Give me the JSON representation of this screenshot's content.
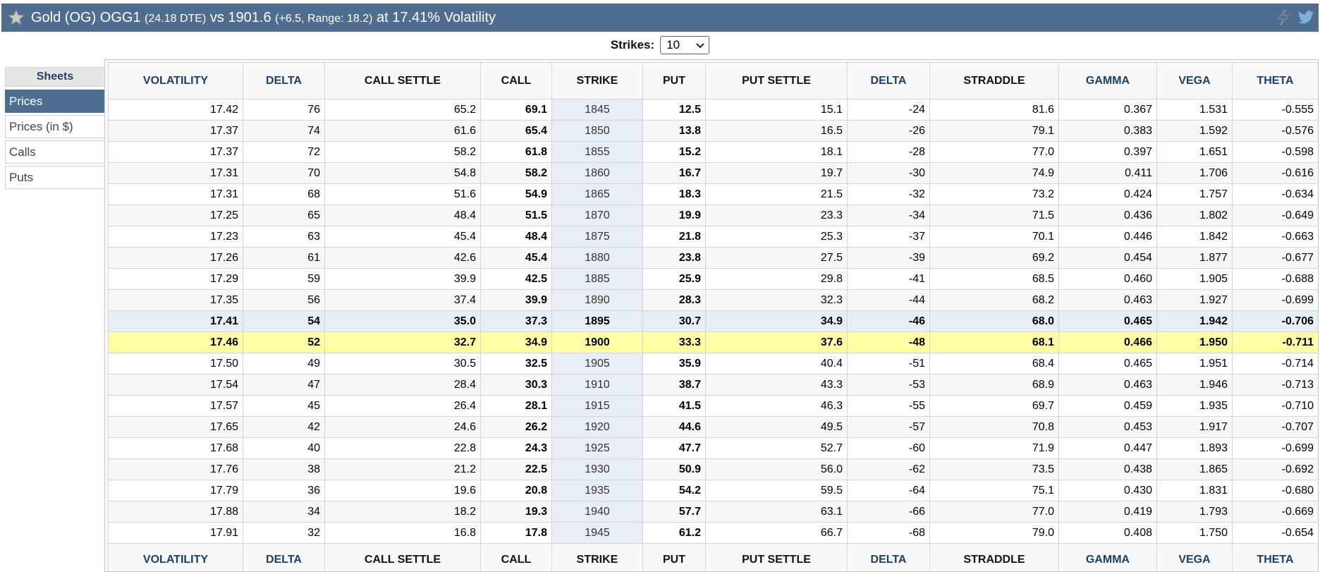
{
  "header": {
    "title_main": "Gold (OG) OGG1 ",
    "dte": "(24.18 DTE)",
    "vs": " vs 1901.6 ",
    "change": "(+6.5,",
    "range": "  Range: 18.2)",
    "volatility": " at 17.41% Volatility",
    "star_icon": "star-icon",
    "icons": [
      "lightning-icon",
      "twitter-icon"
    ]
  },
  "strikes": {
    "label": "Strikes:",
    "value": "10"
  },
  "sidebar": {
    "heading": "Sheets",
    "items": [
      "Prices",
      "Prices (in $)",
      "Calls",
      "Puts"
    ],
    "active_index": 0
  },
  "table": {
    "columns": [
      "VOLATILITY",
      "DELTA",
      "CALL SETTLE",
      "CALL",
      "STRIKE",
      "PUT",
      "PUT SETTLE",
      "DELTA",
      "STRADDLE",
      "GAMMA",
      "VEGA",
      "THETA"
    ],
    "rows": [
      [
        "17.42",
        "76",
        "65.2",
        "69.1",
        "1845",
        "12.5",
        "15.1",
        "-24",
        "81.6",
        "0.367",
        "1.531",
        "-0.555"
      ],
      [
        "17.37",
        "74",
        "61.6",
        "65.4",
        "1850",
        "13.8",
        "16.5",
        "-26",
        "79.1",
        "0.383",
        "1.592",
        "-0.576"
      ],
      [
        "17.37",
        "72",
        "58.2",
        "61.8",
        "1855",
        "15.2",
        "18.1",
        "-28",
        "77.0",
        "0.397",
        "1.651",
        "-0.598"
      ],
      [
        "17.31",
        "70",
        "54.8",
        "58.2",
        "1860",
        "16.7",
        "19.7",
        "-30",
        "74.9",
        "0.411",
        "1.706",
        "-0.616"
      ],
      [
        "17.31",
        "68",
        "51.6",
        "54.9",
        "1865",
        "18.3",
        "21.5",
        "-32",
        "73.2",
        "0.424",
        "1.757",
        "-0.634"
      ],
      [
        "17.25",
        "65",
        "48.4",
        "51.5",
        "1870",
        "19.9",
        "23.3",
        "-34",
        "71.5",
        "0.436",
        "1.802",
        "-0.649"
      ],
      [
        "17.23",
        "63",
        "45.4",
        "48.4",
        "1875",
        "21.8",
        "25.3",
        "-37",
        "70.1",
        "0.446",
        "1.842",
        "-0.663"
      ],
      [
        "17.26",
        "61",
        "42.6",
        "45.4",
        "1880",
        "23.8",
        "27.5",
        "-39",
        "69.2",
        "0.454",
        "1.877",
        "-0.677"
      ],
      [
        "17.29",
        "59",
        "39.9",
        "42.5",
        "1885",
        "25.9",
        "29.8",
        "-41",
        "68.5",
        "0.460",
        "1.905",
        "-0.688"
      ],
      [
        "17.35",
        "56",
        "37.4",
        "39.9",
        "1890",
        "28.3",
        "32.3",
        "-44",
        "68.2",
        "0.463",
        "1.927",
        "-0.699"
      ],
      [
        "17.41",
        "54",
        "35.0",
        "37.3",
        "1895",
        "30.7",
        "34.9",
        "-46",
        "68.0",
        "0.465",
        "1.942",
        "-0.706"
      ],
      [
        "17.46",
        "52",
        "32.7",
        "34.9",
        "1900",
        "33.3",
        "37.6",
        "-48",
        "68.1",
        "0.466",
        "1.950",
        "-0.711"
      ],
      [
        "17.50",
        "49",
        "30.5",
        "32.5",
        "1905",
        "35.9",
        "40.4",
        "-51",
        "68.4",
        "0.465",
        "1.951",
        "-0.714"
      ],
      [
        "17.54",
        "47",
        "28.4",
        "30.3",
        "1910",
        "38.7",
        "43.3",
        "-53",
        "68.9",
        "0.463",
        "1.946",
        "-0.713"
      ],
      [
        "17.57",
        "45",
        "26.4",
        "28.1",
        "1915",
        "41.5",
        "46.3",
        "-55",
        "69.7",
        "0.459",
        "1.935",
        "-0.710"
      ],
      [
        "17.65",
        "42",
        "24.6",
        "26.2",
        "1920",
        "44.6",
        "49.5",
        "-57",
        "70.8",
        "0.453",
        "1.917",
        "-0.707"
      ],
      [
        "17.68",
        "40",
        "22.8",
        "24.3",
        "1925",
        "47.7",
        "52.7",
        "-60",
        "71.9",
        "0.447",
        "1.893",
        "-0.699"
      ],
      [
        "17.76",
        "38",
        "21.2",
        "22.5",
        "1930",
        "50.9",
        "56.0",
        "-62",
        "73.5",
        "0.438",
        "1.865",
        "-0.692"
      ],
      [
        "17.79",
        "36",
        "19.6",
        "20.8",
        "1935",
        "54.2",
        "59.5",
        "-64",
        "75.1",
        "0.430",
        "1.831",
        "-0.680"
      ],
      [
        "17.88",
        "34",
        "18.2",
        "19.3",
        "1940",
        "57.7",
        "63.1",
        "-66",
        "77.0",
        "0.419",
        "1.793",
        "-0.669"
      ],
      [
        "17.91",
        "32",
        "16.8",
        "17.8",
        "1945",
        "61.2",
        "66.7",
        "-68",
        "79.0",
        "0.408",
        "1.750",
        "-0.654"
      ]
    ],
    "highlight_rows": {
      "near": 10,
      "at_money": 11
    }
  },
  "colors": {
    "header_bg": "#4f6d8e",
    "at_money": "#ffffa6",
    "near_money": "#e8eef6",
    "strike_col": "#e8eef6"
  }
}
